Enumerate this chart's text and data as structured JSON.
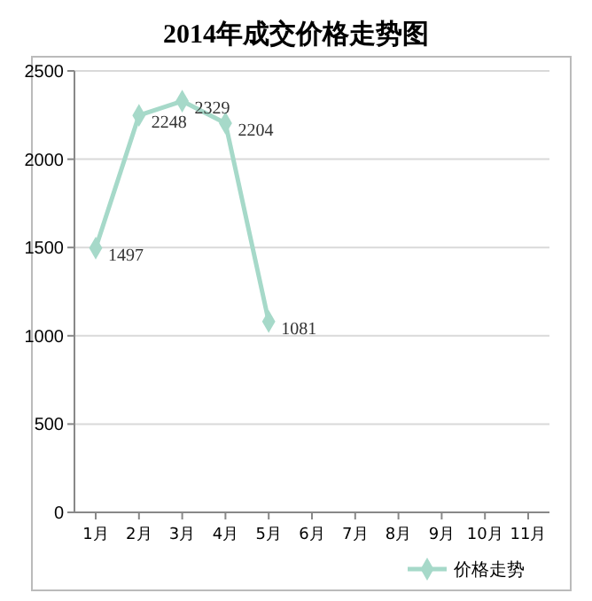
{
  "chart_data": {
    "type": "line",
    "title": "2014年成交价格走势图",
    "categories": [
      "1月",
      "2月",
      "3月",
      "4月",
      "5月",
      "6月",
      "7月",
      "8月",
      "9月",
      "10月",
      "11月"
    ],
    "series": [
      {
        "name": "价格走势",
        "color": "#a6d9c9",
        "values": [
          1497,
          2248,
          2329,
          2204,
          1081,
          null,
          null,
          null,
          null,
          null,
          null
        ]
      }
    ],
    "ylim": [
      0,
      2500
    ],
    "yticks": [
      0,
      500,
      1000,
      1500,
      2000,
      2500
    ],
    "grid": "y",
    "legend": "bottom right",
    "marker": "diamond",
    "line_style": "solid",
    "data_labels": true
  }
}
